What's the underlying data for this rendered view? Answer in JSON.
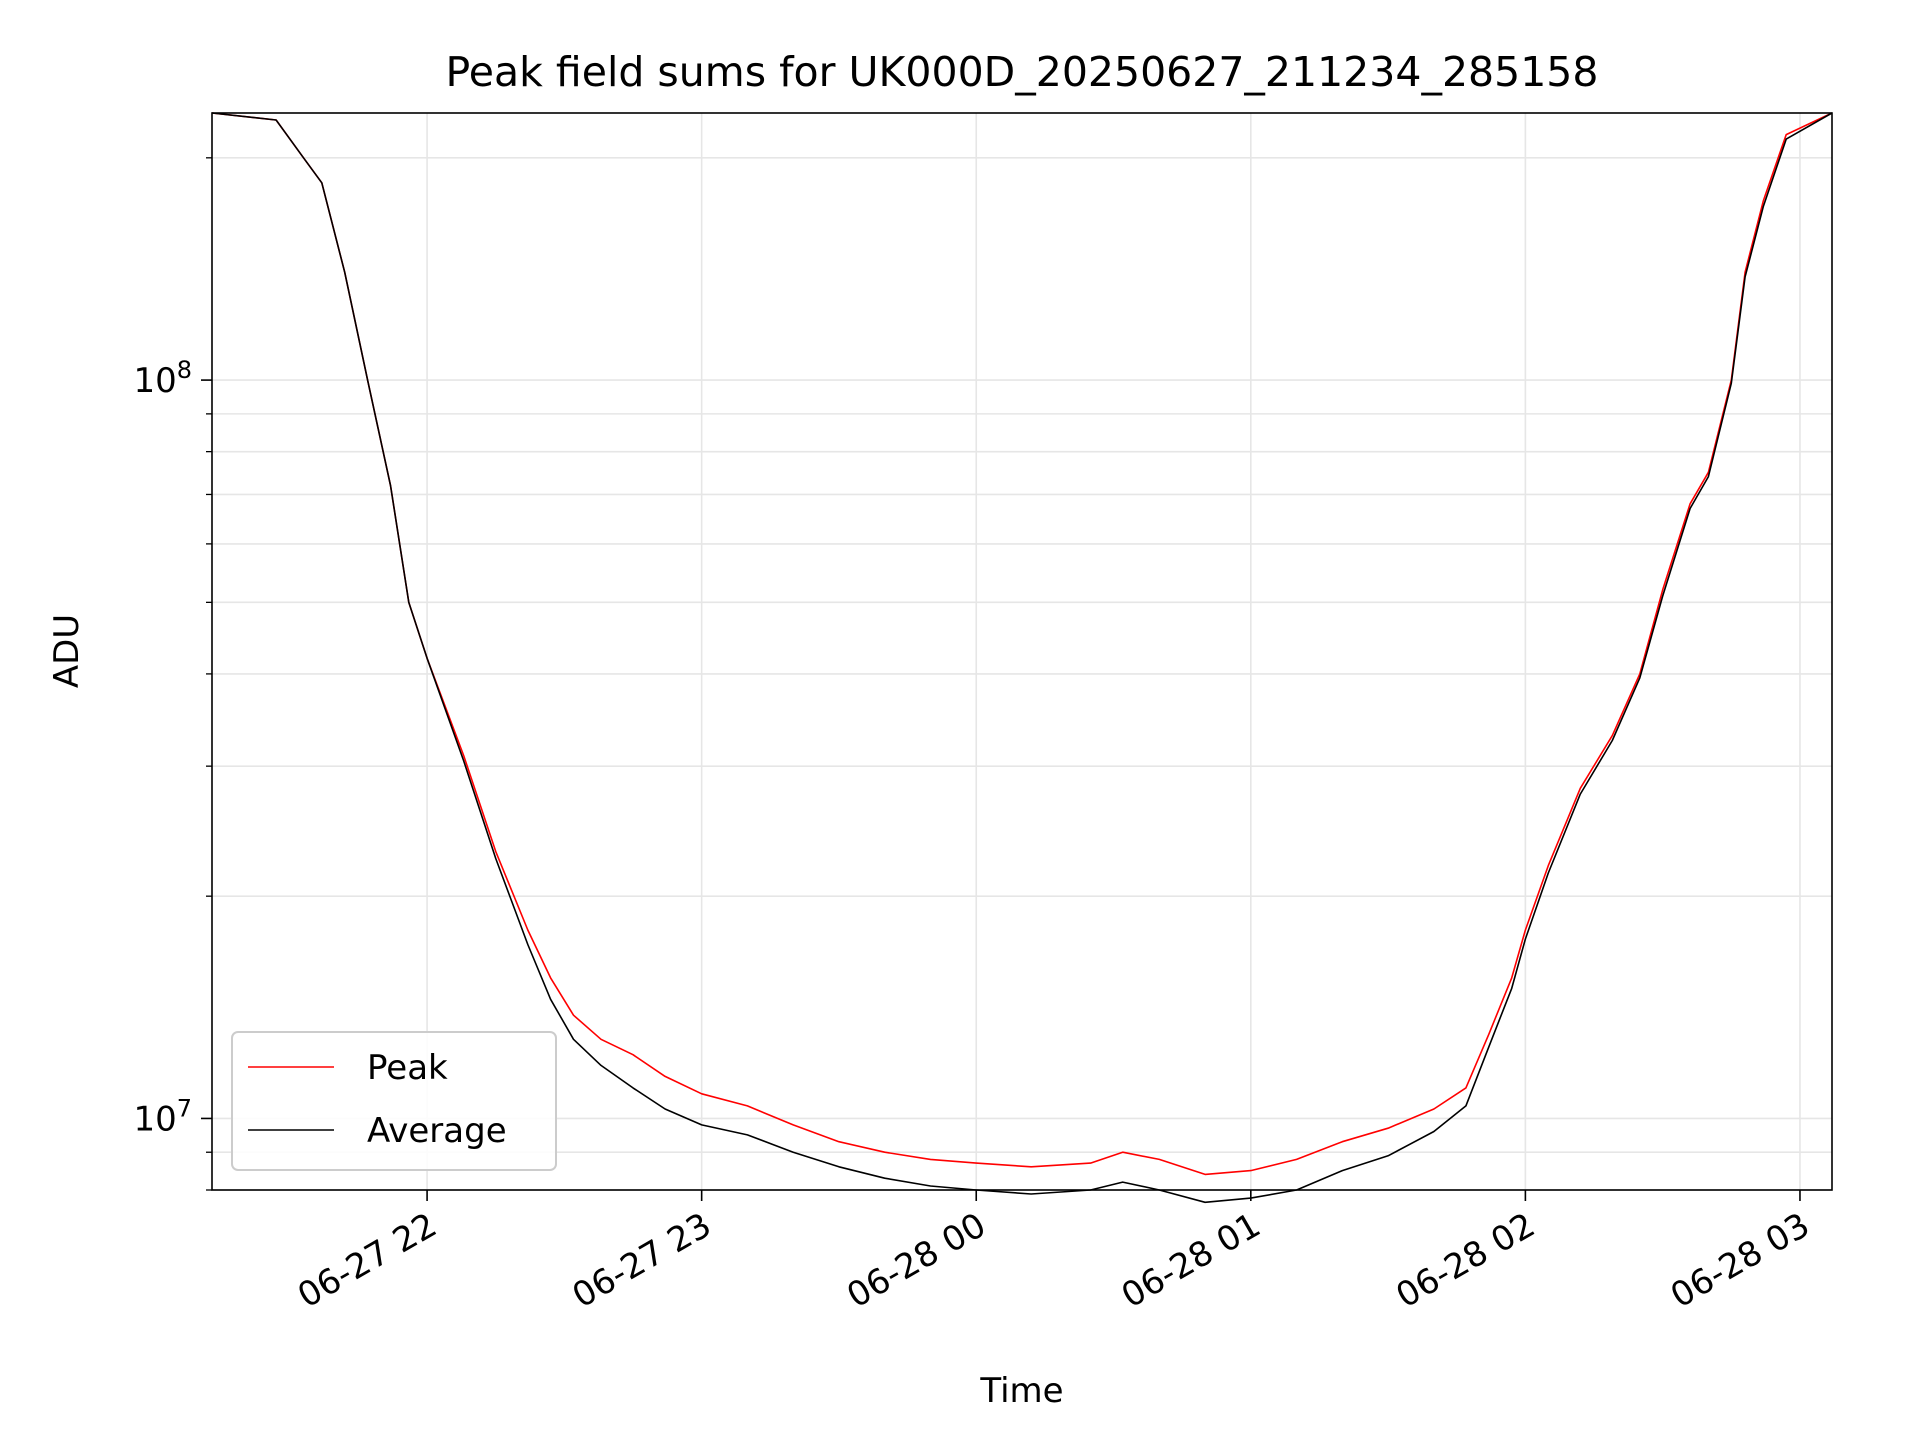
{
  "chart_data": {
    "type": "line",
    "title": "Peak field sums for UK000D_20250627_211234_285158",
    "xlabel": "Time",
    "ylabel": "ADU",
    "y_scale": "log",
    "grid": true,
    "legend_position": "lower-left",
    "xlim": [
      "2025-06-27 21:13",
      "2025-06-28 03:07"
    ],
    "ylim": [
      8000000,
      230000000
    ],
    "x_ticks": [
      {
        "value": "2025-06-27 22:00",
        "label": "06-27 22"
      },
      {
        "value": "2025-06-27 23:00",
        "label": "06-27 23"
      },
      {
        "value": "2025-06-28 00:00",
        "label": "06-28 00"
      },
      {
        "value": "2025-06-28 01:00",
        "label": "06-28 01"
      },
      {
        "value": "2025-06-28 02:00",
        "label": "06-28 02"
      },
      {
        "value": "2025-06-28 03:00",
        "label": "06-28 03"
      }
    ],
    "y_ticks": [
      {
        "value": 10000000,
        "label": "10",
        "exponent": "7"
      },
      {
        "value": 100000000,
        "label": "10",
        "exponent": "8"
      }
    ],
    "series": [
      {
        "name": "Peak",
        "color": "#ff0000",
        "x": [
          "2025-06-27 21:13",
          "2025-06-27 21:27",
          "2025-06-27 21:33",
          "2025-06-27 21:37",
          "2025-06-27 21:42",
          "2025-06-27 21:47",
          "2025-06-27 21:52",
          "2025-06-27 21:56",
          "2025-06-27 22:00",
          "2025-06-27 22:08",
          "2025-06-27 22:15",
          "2025-06-27 22:22",
          "2025-06-27 22:27",
          "2025-06-27 22:32",
          "2025-06-27 22:38",
          "2025-06-27 22:45",
          "2025-06-27 22:52",
          "2025-06-27 23:00",
          "2025-06-27 23:10",
          "2025-06-27 23:20",
          "2025-06-27 23:30",
          "2025-06-27 23:40",
          "2025-06-27 23:50",
          "2025-06-28 00:00",
          "2025-06-28 00:12",
          "2025-06-28 00:25",
          "2025-06-28 00:32",
          "2025-06-28 00:40",
          "2025-06-28 00:50",
          "2025-06-28 01:00",
          "2025-06-28 01:10",
          "2025-06-28 01:20",
          "2025-06-28 01:30",
          "2025-06-28 01:40",
          "2025-06-28 01:47",
          "2025-06-28 01:52",
          "2025-06-28 01:57",
          "2025-06-28 02:00",
          "2025-06-28 02:05",
          "2025-06-28 02:12",
          "2025-06-28 02:19",
          "2025-06-28 02:25",
          "2025-06-28 02:30",
          "2025-06-28 02:36",
          "2025-06-28 02:40",
          "2025-06-28 02:45",
          "2025-06-28 02:48",
          "2025-06-28 02:52",
          "2025-06-28 02:57",
          "2025-06-28 03:07"
        ],
        "values": [
          230000000,
          225000000,
          200000000,
          185000000,
          140000000,
          100000000,
          72000000,
          50000000,
          42000000,
          31000000,
          23000000,
          18000000,
          15500000,
          13800000,
          12800000,
          12200000,
          11400000,
          10800000,
          10400000,
          9800000,
          9300000,
          9000000,
          8800000,
          8700000,
          8600000,
          8700000,
          9000000,
          8800000,
          8400000,
          8500000,
          8800000,
          9300000,
          9700000,
          10300000,
          11000000,
          13000000,
          15500000,
          18000000,
          22000000,
          28000000,
          33000000,
          40000000,
          52000000,
          68000000,
          75000000,
          100000000,
          140000000,
          175000000,
          215000000,
          230000000
        ]
      },
      {
        "name": "Average",
        "color": "#000000",
        "x": [
          "2025-06-27 21:13",
          "2025-06-27 21:27",
          "2025-06-27 21:33",
          "2025-06-27 21:37",
          "2025-06-27 21:42",
          "2025-06-27 21:47",
          "2025-06-27 21:52",
          "2025-06-27 21:56",
          "2025-06-27 22:00",
          "2025-06-27 22:08",
          "2025-06-27 22:15",
          "2025-06-27 22:22",
          "2025-06-27 22:27",
          "2025-06-27 22:32",
          "2025-06-27 22:38",
          "2025-06-27 22:45",
          "2025-06-27 22:52",
          "2025-06-27 23:00",
          "2025-06-27 23:10",
          "2025-06-27 23:20",
          "2025-06-27 23:30",
          "2025-06-27 23:40",
          "2025-06-27 23:50",
          "2025-06-28 00:00",
          "2025-06-28 00:12",
          "2025-06-28 00:25",
          "2025-06-28 00:32",
          "2025-06-28 00:40",
          "2025-06-28 00:50",
          "2025-06-28 01:00",
          "2025-06-28 01:10",
          "2025-06-28 01:20",
          "2025-06-28 01:30",
          "2025-06-28 01:40",
          "2025-06-28 01:47",
          "2025-06-28 01:52",
          "2025-06-28 01:57",
          "2025-06-28 02:00",
          "2025-06-28 02:05",
          "2025-06-28 02:12",
          "2025-06-28 02:19",
          "2025-06-28 02:25",
          "2025-06-28 02:30",
          "2025-06-28 02:36",
          "2025-06-28 02:40",
          "2025-06-28 02:45",
          "2025-06-28 02:48",
          "2025-06-28 02:52",
          "2025-06-28 02:57",
          "2025-06-28 03:07"
        ],
        "values": [
          230000000,
          225000000,
          200000000,
          185000000,
          140000000,
          100000000,
          72000000,
          50000000,
          42000000,
          30500000,
          22500000,
          17200000,
          14500000,
          12800000,
          11800000,
          11000000,
          10300000,
          9800000,
          9500000,
          9000000,
          8600000,
          8300000,
          8100000,
          8000000,
          7900000,
          8000000,
          8200000,
          8000000,
          7700000,
          7800000,
          8000000,
          8500000,
          8900000,
          9600000,
          10400000,
          12500000,
          15000000,
          17500000,
          21500000,
          27500000,
          32500000,
          39500000,
          51000000,
          67000000,
          74000000,
          99000000,
          138000000,
          172000000,
          212000000,
          230000000
        ]
      }
    ],
    "annotations": []
  }
}
